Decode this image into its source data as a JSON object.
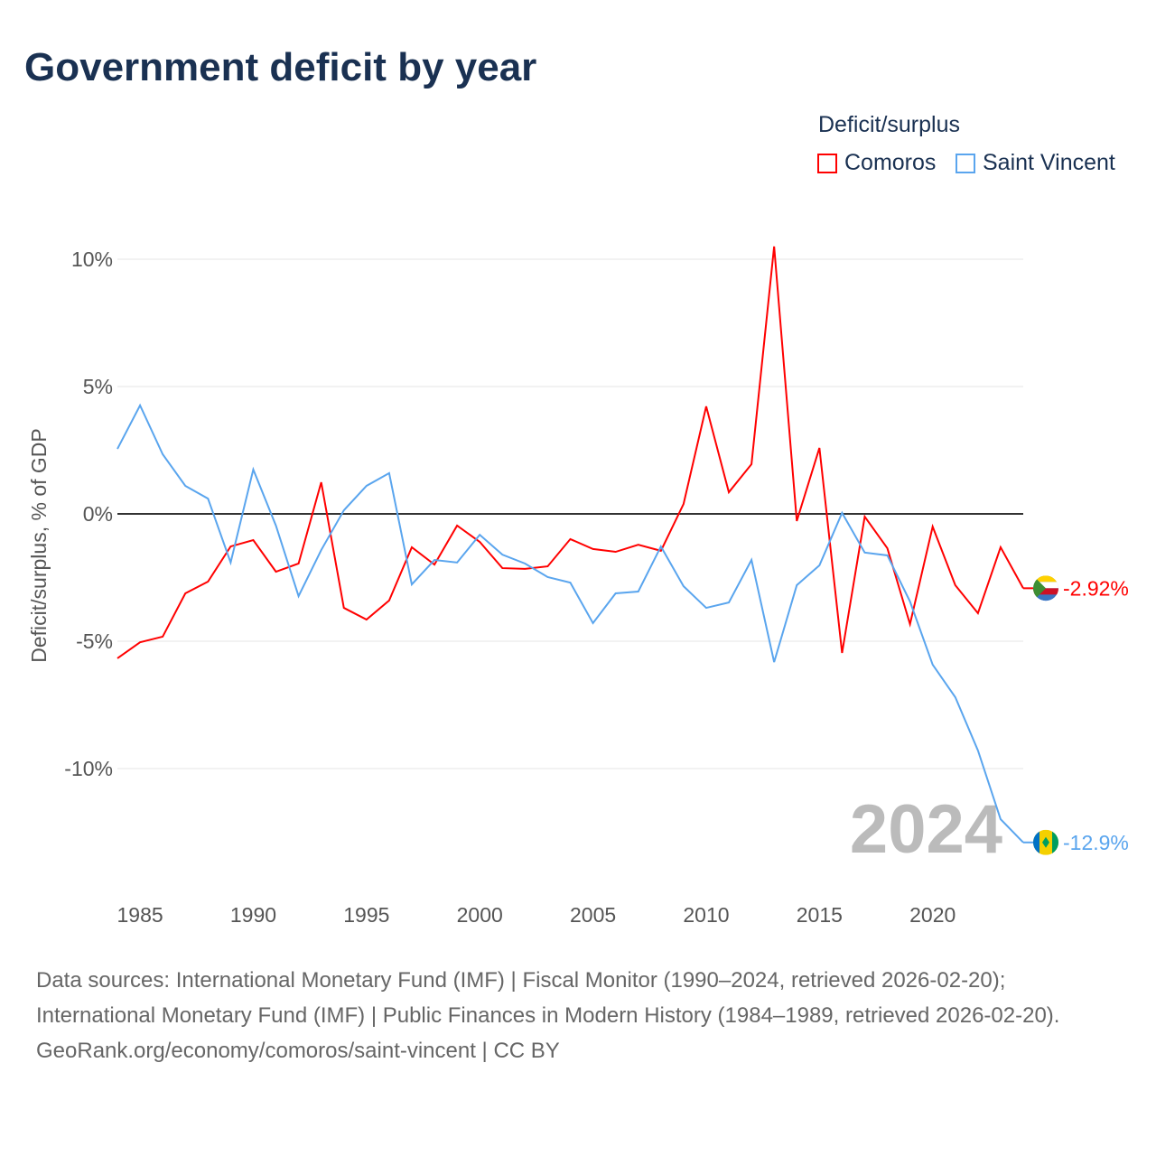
{
  "title": "Government deficit by year",
  "legend": {
    "title": "Deficit/surplus",
    "items": [
      "Comoros",
      "Saint Vincent"
    ]
  },
  "year_label": "2024",
  "end_labels": {
    "comoros": "-2.92%",
    "saint_vincent": "-12.9%"
  },
  "footer": {
    "line1": "Data sources: International Monetary Fund (IMF) | Fiscal Monitor (1990–2024, retrieved 2026-02-20); International Monetary Fund (IMF) | Public Finances in Modern History (1984–1989, retrieved 2026-02-20).",
    "line2": "GeoRank.org/economy/comoros/saint-vincent | CC BY"
  },
  "chart_data": {
    "type": "line",
    "ylabel": "Deficit/surplus, % of GDP",
    "xlim": [
      1984,
      2024
    ],
    "ylim": [
      -13.5,
      11
    ],
    "x_ticks": [
      1985,
      1990,
      1995,
      2000,
      2005,
      2010,
      2015,
      2020
    ],
    "y_ticks": [
      {
        "v": 10,
        "l": "10%"
      },
      {
        "v": 5,
        "l": "5%"
      },
      {
        "v": 0,
        "l": "0%"
      },
      {
        "v": -5,
        "l": "-5%"
      },
      {
        "v": -10,
        "l": "-10%"
      }
    ],
    "x": [
      1984,
      1985,
      1986,
      1987,
      1988,
      1989,
      1990,
      1991,
      1992,
      1993,
      1994,
      1995,
      1996,
      1997,
      1998,
      1999,
      2000,
      2001,
      2002,
      2003,
      2004,
      2005,
      2006,
      2007,
      2008,
      2009,
      2010,
      2011,
      2012,
      2013,
      2014,
      2015,
      2016,
      2017,
      2018,
      2019,
      2020,
      2021,
      2022,
      2023,
      2024
    ],
    "series": [
      {
        "name": "Comoros",
        "color": "#ff0000",
        "values": [
          -5.67,
          -5.04,
          -4.82,
          -3.12,
          -2.66,
          -1.28,
          -1.03,
          -2.27,
          -1.95,
          1.24,
          -3.69,
          -4.15,
          -3.4,
          -1.31,
          -1.99,
          -0.46,
          -1.1,
          -2.13,
          -2.16,
          -2.06,
          -0.99,
          -1.38,
          -1.49,
          -1.21,
          -1.45,
          0.39,
          4.22,
          0.85,
          1.95,
          10.5,
          -0.28,
          2.59,
          -5.46,
          -0.11,
          -1.35,
          -4.33,
          -0.5,
          -2.8,
          -3.9,
          -1.31,
          -2.92
        ]
      },
      {
        "name": "Saint Vincent",
        "color": "#5aa5ee",
        "values": [
          2.55,
          4.26,
          2.34,
          1.1,
          0.6,
          -1.91,
          1.74,
          -0.46,
          -3.23,
          -1.42,
          0.14,
          1.1,
          1.6,
          -2.77,
          -1.81,
          -1.91,
          -0.82,
          -1.6,
          -1.95,
          -2.48,
          -2.7,
          -4.29,
          -3.12,
          -3.05,
          -1.28,
          -2.84,
          -3.69,
          -3.48,
          -1.81,
          -5.82,
          -2.8,
          -2.02,
          0.04,
          -1.52,
          -1.63,
          -3.44,
          -5.92,
          -7.2,
          -9.29,
          -11.99,
          -12.9
        ]
      }
    ]
  }
}
